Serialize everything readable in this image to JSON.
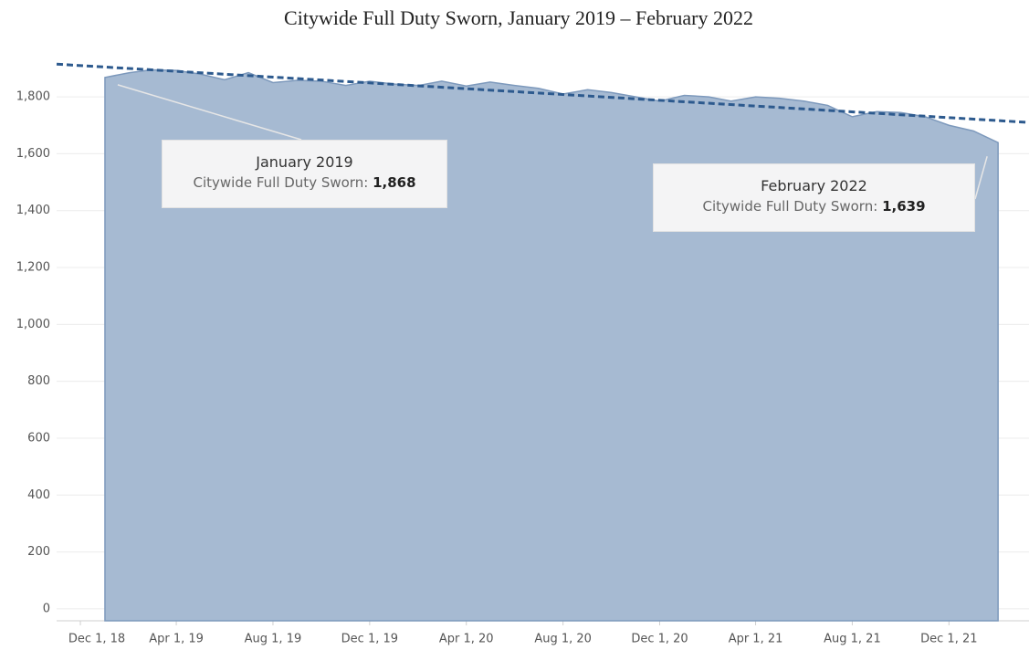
{
  "chart_data": {
    "type": "area",
    "title": "Citywide Full Duty Sworn, January 2019 – February 2022",
    "x": [
      "2019-01-01",
      "2019-02-01",
      "2019-03-01",
      "2019-04-01",
      "2019-05-01",
      "2019-06-01",
      "2019-07-01",
      "2019-08-01",
      "2019-09-01",
      "2019-10-01",
      "2019-11-01",
      "2019-12-01",
      "2020-01-01",
      "2020-02-01",
      "2020-03-01",
      "2020-04-01",
      "2020-05-01",
      "2020-06-01",
      "2020-07-01",
      "2020-08-01",
      "2020-09-01",
      "2020-10-01",
      "2020-11-01",
      "2020-12-01",
      "2021-01-01",
      "2021-02-01",
      "2021-03-01",
      "2021-04-01",
      "2021-05-01",
      "2021-06-01",
      "2021-07-01",
      "2021-08-01",
      "2021-09-01",
      "2021-10-01",
      "2021-11-01",
      "2021-12-01",
      "2022-01-01",
      "2022-02-01"
    ],
    "series": [
      {
        "name": "Citywide Full Duty Sworn",
        "color": "#a6bad2",
        "values": [
          1868,
          1885,
          1895,
          1893,
          1880,
          1860,
          1885,
          1850,
          1858,
          1855,
          1840,
          1855,
          1845,
          1840,
          1855,
          1838,
          1852,
          1840,
          1830,
          1810,
          1825,
          1815,
          1800,
          1785,
          1805,
          1800,
          1785,
          1800,
          1795,
          1785,
          1770,
          1730,
          1748,
          1745,
          1730,
          1700,
          1680,
          1639
        ],
        "value_labels": [
          "1,868",
          null,
          null,
          null,
          null,
          null,
          null,
          null,
          null,
          null,
          null,
          null,
          null,
          null,
          null,
          null,
          null,
          null,
          null,
          null,
          null,
          null,
          null,
          null,
          null,
          null,
          null,
          null,
          null,
          null,
          null,
          null,
          null,
          null,
          null,
          null,
          null,
          "1,639"
        ]
      }
    ],
    "trend_line": {
      "color": "#2d5a8e",
      "x": [
        "2018-11-01",
        "2022-03-12"
      ],
      "values": [
        1915,
        1710
      ]
    },
    "annotations": [
      {
        "title": "January 2019",
        "text": "Citywide Full Duty Sworn:"
      },
      {
        "title": "February 2022",
        "text": "Citywide Full Duty Sworn:"
      }
    ],
    "xlim": [
      "2018-11-01",
      "2022-03-12"
    ],
    "xticks": [
      {
        "value": "2018-12-01",
        "label": "Dec 1, 18"
      },
      {
        "value": "2019-04-01",
        "label": "Apr 1, 19"
      },
      {
        "value": "2019-08-01",
        "label": "Aug 1, 19"
      },
      {
        "value": "2019-12-01",
        "label": "Dec 1, 19"
      },
      {
        "value": "2020-04-01",
        "label": "Apr 1, 20"
      },
      {
        "value": "2020-08-01",
        "label": "Aug 1, 20"
      },
      {
        "value": "2020-12-01",
        "label": "Dec 1, 20"
      },
      {
        "value": "2021-04-01",
        "label": "Apr 1, 21"
      },
      {
        "value": "2021-08-01",
        "label": "Aug 1, 21"
      },
      {
        "value": "2021-12-01",
        "label": "Dec 1, 21"
      }
    ],
    "ylim": [
      -42,
      1980
    ],
    "yticks": [
      0,
      200,
      400,
      600,
      800,
      {
        "value": 1000,
        "label": "1,000"
      },
      {
        "value": 1200,
        "label": "1,200"
      },
      {
        "value": 1400,
        "label": "1,400"
      },
      {
        "value": 1600,
        "label": "1,600"
      },
      {
        "value": 1800,
        "label": "1,800"
      }
    ],
    "grid": true
  }
}
